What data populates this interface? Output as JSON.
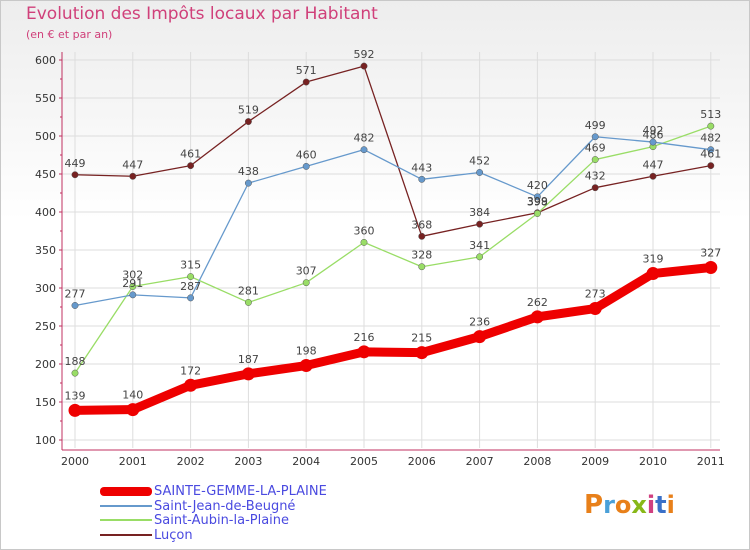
{
  "title": "Evolution des Impôts locaux par Habitant",
  "subtitle": "(en € et par an)",
  "logo_text": "Proxiti",
  "chart_data": {
    "type": "line",
    "title": "Evolution des Impôts locaux par Habitant",
    "ylabel": "(en € et par an)",
    "xlabel": "",
    "ylim": [
      100,
      600
    ],
    "ytick_labels": [
      "100",
      "150",
      "200",
      "250",
      "300",
      "350",
      "400",
      "450",
      "500",
      "550",
      "600"
    ],
    "categories": [
      "2000",
      "2001",
      "2002",
      "2003",
      "2004",
      "2005",
      "2006",
      "2007",
      "2008",
      "2009",
      "2010",
      "2011"
    ],
    "series": [
      {
        "name": "SAINTE-GEMME-LA-PLAINE",
        "color": "#ee0000",
        "values": [
          139,
          140,
          172,
          187,
          198,
          216,
          215,
          236,
          262,
          273,
          319,
          327
        ]
      },
      {
        "name": "Saint-Jean-de-Beugné",
        "color": "#6699cc",
        "values": [
          277,
          291,
          287,
          438,
          460,
          482,
          443,
          452,
          420,
          499,
          492,
          482
        ]
      },
      {
        "name": "Saint-Aubin-la-Plaine",
        "color": "#99dd66",
        "values": [
          188,
          302,
          315,
          281,
          307,
          360,
          328,
          341,
          398,
          469,
          486,
          513
        ]
      },
      {
        "name": "Luçon",
        "color": "#772222",
        "values": [
          449,
          447,
          461,
          519,
          571,
          592,
          368,
          384,
          399,
          432,
          447,
          461
        ]
      }
    ]
  }
}
